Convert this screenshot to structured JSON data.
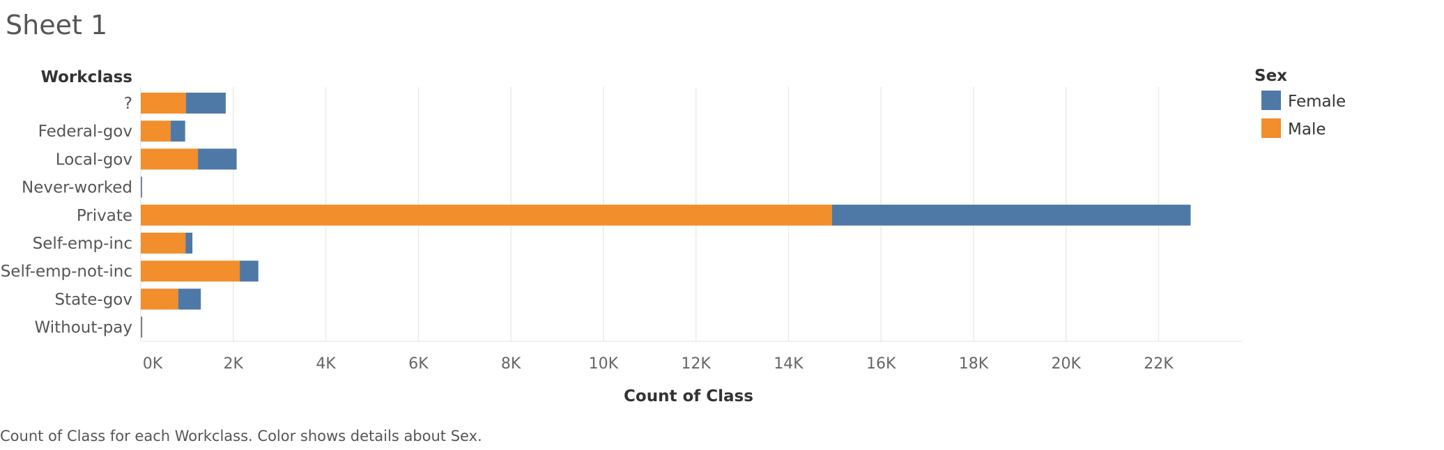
{
  "sheet": {
    "title": "Sheet 1",
    "caption": "Count of Class for each Workclass.  Color shows details about Sex."
  },
  "colors": {
    "Female": "#4e79a7",
    "Male": "#f28e2b",
    "grid": "#ebebeb",
    "axis_text": "#666666"
  },
  "chart_data": {
    "type": "bar",
    "orientation": "horizontal",
    "stacked": true,
    "row_header": "Workclass",
    "xlabel": "Count of Class",
    "xlim": [
      0,
      23800
    ],
    "x_ticks": [
      0,
      2000,
      4000,
      6000,
      8000,
      10000,
      12000,
      14000,
      16000,
      18000,
      20000,
      22000
    ],
    "x_tick_labels": [
      "0K",
      "2K",
      "4K",
      "6K",
      "8K",
      "10K",
      "12K",
      "14K",
      "16K",
      "18K",
      "20K",
      "22K"
    ],
    "grid": true,
    "legend_title": "Sex",
    "legend_position": "top-right",
    "categories": [
      "?",
      "Federal-gov",
      "Local-gov",
      "Never-worked",
      "Private",
      "Self-emp-inc",
      "Self-emp-not-inc",
      "State-gov",
      "Without-pay"
    ],
    "series": [
      {
        "name": "Male",
        "values": [
          975,
          644,
          1236,
          5,
          14940,
          966,
          2140,
          809,
          9
        ]
      },
      {
        "name": "Female",
        "values": [
          861,
          315,
          836,
          5,
          7752,
          150,
          401,
          489,
          5
        ]
      }
    ],
    "legend_order": [
      "Female",
      "Male"
    ]
  }
}
